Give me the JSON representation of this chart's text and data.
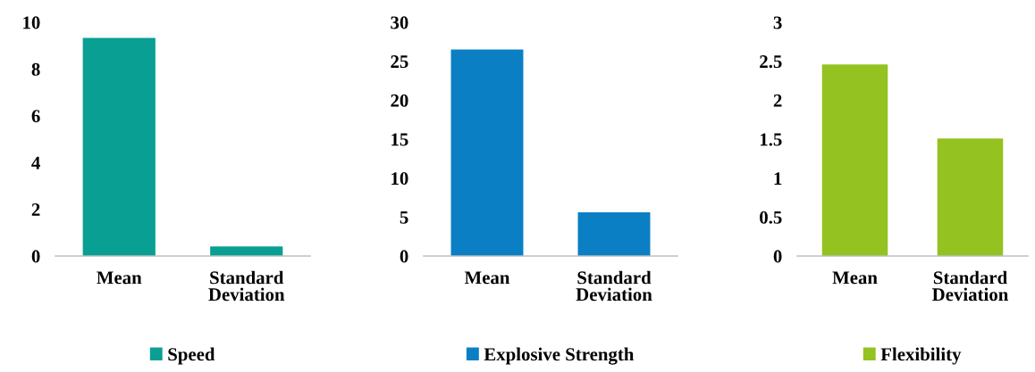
{
  "chart_data": [
    {
      "type": "bar",
      "categories": [
        "Mean",
        "Standard\nDeviation"
      ],
      "series": [
        {
          "name": "Speed",
          "color": "#0a9f93",
          "values": [
            9.33,
            0.41
          ]
        }
      ],
      "ylim": [
        0,
        10
      ],
      "yticks": [
        0,
        2,
        4,
        6,
        8,
        10
      ],
      "grid": false,
      "legend": "bottom"
    },
    {
      "type": "bar",
      "categories": [
        "Mean",
        "Standard\nDeviation"
      ],
      "series": [
        {
          "name": "Explosive Strength",
          "color": "#0a7fc4",
          "values": [
            26.5,
            5.6
          ]
        }
      ],
      "ylim": [
        0,
        30
      ],
      "yticks": [
        0,
        5,
        10,
        15,
        20,
        25,
        30
      ],
      "grid": false,
      "legend": "bottom"
    },
    {
      "type": "bar",
      "categories": [
        "Mean",
        "Standard\nDeviation"
      ],
      "series": [
        {
          "name": "Flexibility",
          "color": "#93c221",
          "values": [
            2.46,
            1.51
          ]
        }
      ],
      "ylim": [
        0,
        3
      ],
      "yticks": [
        0,
        0.5,
        1,
        1.5,
        2,
        2.5,
        3
      ],
      "grid": false,
      "legend": "bottom"
    }
  ]
}
